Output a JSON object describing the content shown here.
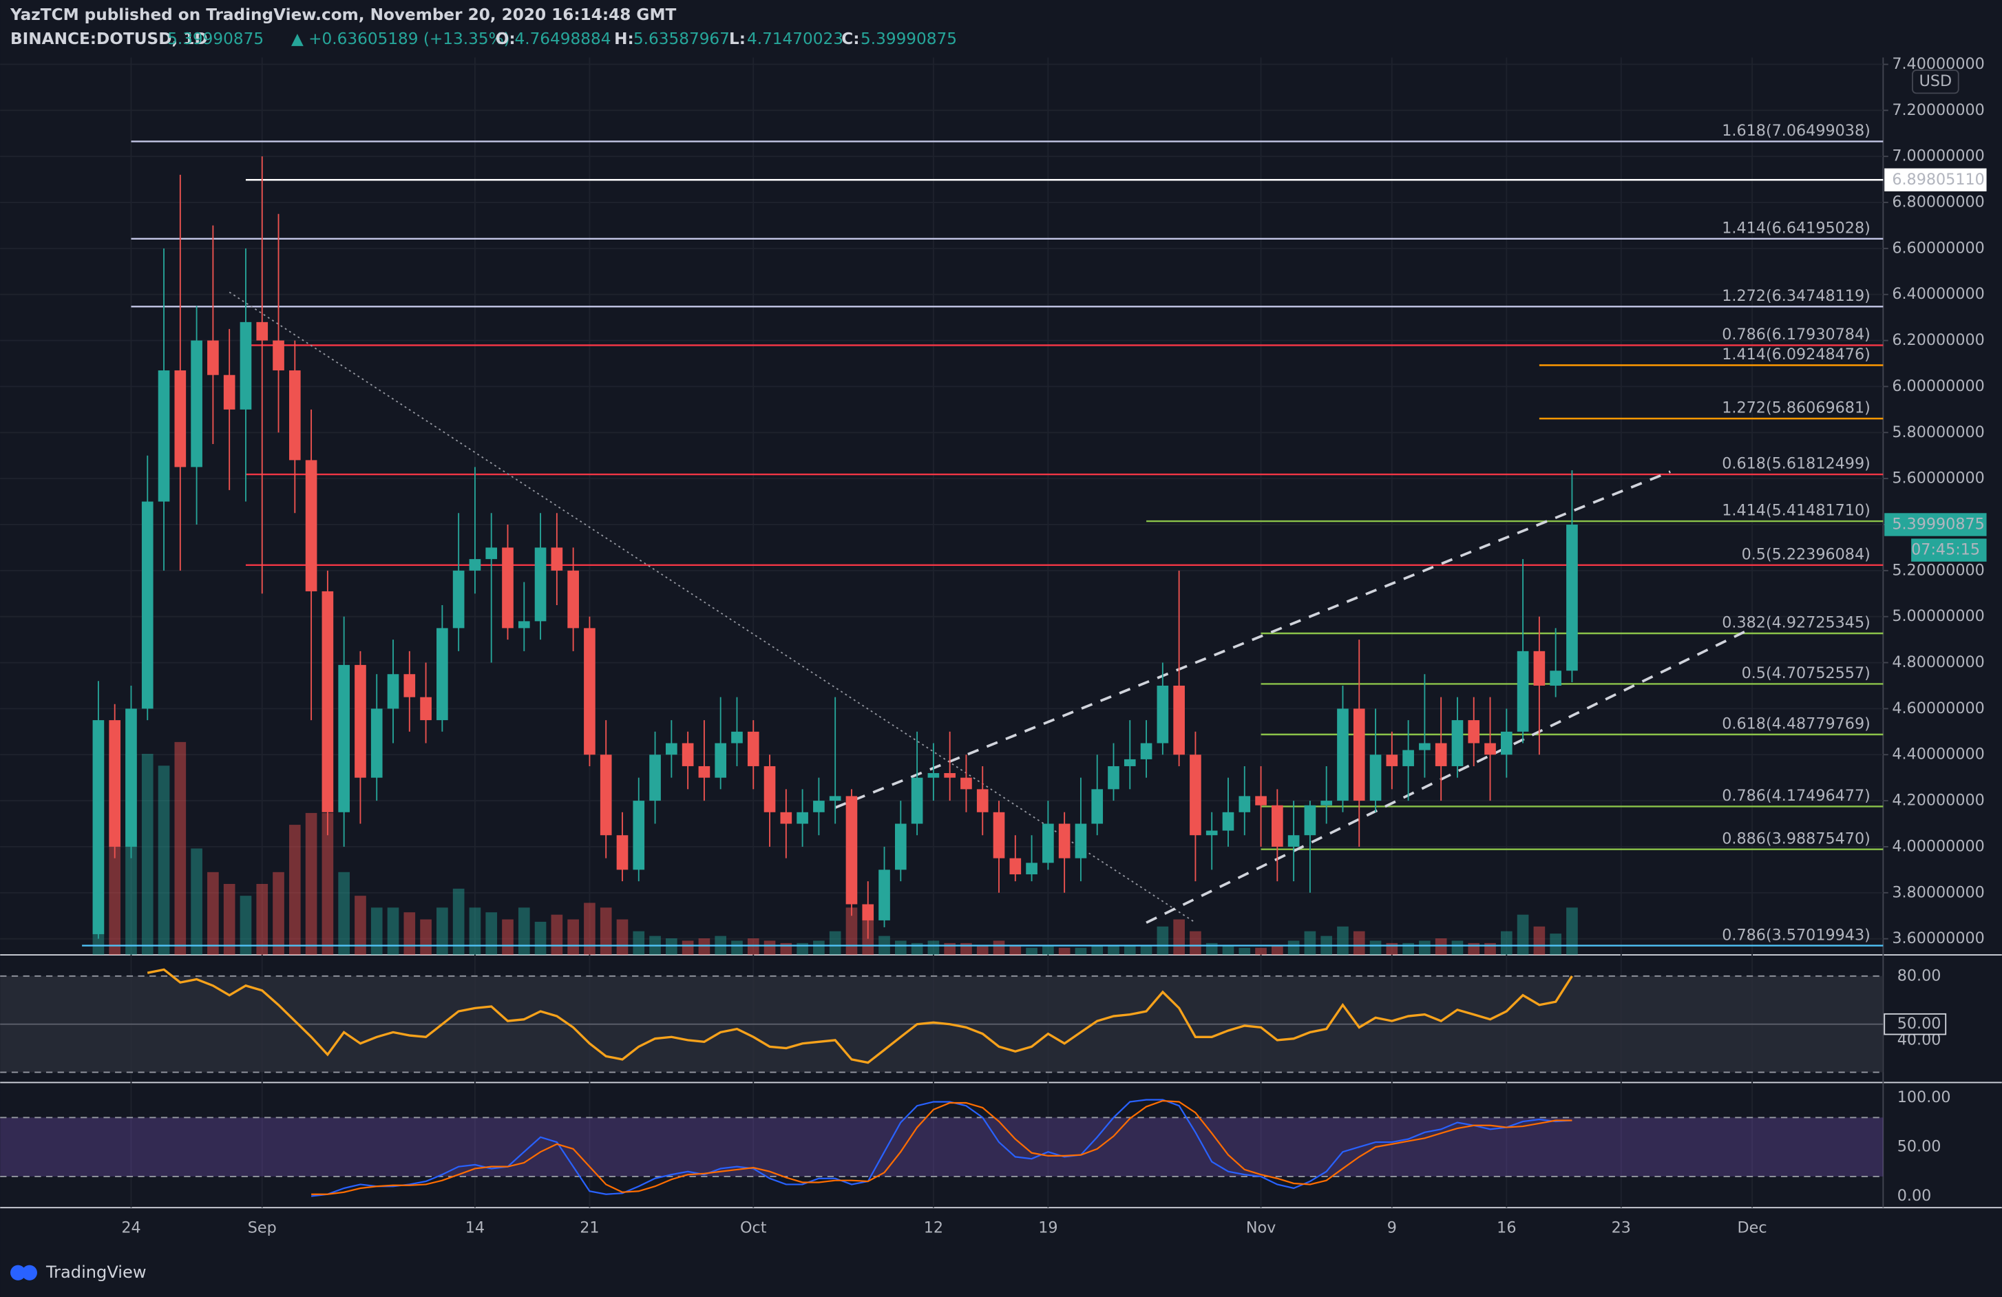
{
  "header": {
    "publisher": "YazTCM published on TradingView.com, November 20, 2020 16:14:48 GMT",
    "symbol": "BINANCE:DOTUSD, 1D",
    "change": "▲ +0.63605189 (+13.35%)",
    "ohlc_labels": [
      "O:",
      "H:",
      "L:",
      "C:"
    ],
    "currency": "USD",
    "countdown": "07:45:15"
  },
  "chart_data": {
    "type": "candlestick",
    "x": [
      "2020-08-22",
      "2020-08-23",
      "2020-08-24",
      "2020-08-25",
      "2020-08-26",
      "2020-08-27",
      "2020-08-28",
      "2020-08-29",
      "2020-08-30",
      "2020-08-31",
      "2020-09-01",
      "2020-09-02",
      "2020-09-03",
      "2020-09-04",
      "2020-09-05",
      "2020-09-06",
      "2020-09-07",
      "2020-09-08",
      "2020-09-09",
      "2020-09-10",
      "2020-09-11",
      "2020-09-12",
      "2020-09-13",
      "2020-09-14",
      "2020-09-15",
      "2020-09-16",
      "2020-09-17",
      "2020-09-18",
      "2020-09-19",
      "2020-09-20",
      "2020-09-21",
      "2020-09-22",
      "2020-09-23",
      "2020-09-24",
      "2020-09-25",
      "2020-09-26",
      "2020-09-27",
      "2020-09-28",
      "2020-09-29",
      "2020-09-30",
      "2020-10-01",
      "2020-10-02",
      "2020-10-03",
      "2020-10-04",
      "2020-10-05",
      "2020-10-06",
      "2020-10-07",
      "2020-10-08",
      "2020-10-09",
      "2020-10-10",
      "2020-10-11",
      "2020-10-12",
      "2020-10-13",
      "2020-10-14",
      "2020-10-15",
      "2020-10-16",
      "2020-10-17",
      "2020-10-18",
      "2020-10-19",
      "2020-10-20",
      "2020-10-21",
      "2020-10-22",
      "2020-10-23",
      "2020-10-24",
      "2020-10-25",
      "2020-10-26",
      "2020-10-27",
      "2020-10-28",
      "2020-10-29",
      "2020-10-30",
      "2020-10-31",
      "2020-11-01",
      "2020-11-02",
      "2020-11-03",
      "2020-11-04",
      "2020-11-05",
      "2020-11-06",
      "2020-11-07",
      "2020-11-08",
      "2020-11-09",
      "2020-11-10",
      "2020-11-11",
      "2020-11-12",
      "2020-11-13",
      "2020-11-14",
      "2020-11-15",
      "2020-11-16",
      "2020-11-17",
      "2020-11-18",
      "2020-11-19",
      "2020-11-20"
    ],
    "open": [
      3.62,
      4.55,
      4.0,
      4.6,
      5.5,
      6.07,
      5.65,
      6.2,
      6.05,
      5.9,
      6.28,
      6.2,
      6.07,
      5.68,
      5.11,
      4.15,
      4.79,
      4.3,
      4.6,
      4.75,
      4.65,
      4.55,
      4.95,
      5.2,
      5.25,
      5.3,
      4.95,
      4.98,
      5.3,
      5.2,
      4.95,
      4.4,
      4.05,
      3.9,
      4.2,
      4.4,
      4.45,
      4.35,
      4.3,
      4.45,
      4.5,
      4.35,
      4.15,
      4.1,
      4.15,
      4.2,
      4.22,
      3.75,
      3.68,
      3.9,
      4.1,
      4.3,
      4.32,
      4.3,
      4.25,
      4.15,
      3.95,
      3.88,
      3.93,
      4.1,
      3.95,
      4.1,
      4.25,
      4.35,
      4.38,
      4.45,
      4.7,
      4.4,
      4.05,
      4.07,
      4.15,
      4.22,
      4.18,
      4.0,
      4.05,
      4.18,
      4.2,
      4.6,
      4.2,
      4.4,
      4.35,
      4.42,
      4.45,
      4.35,
      4.55,
      4.45,
      4.4,
      4.5,
      4.85,
      4.7,
      4.76498884
    ],
    "high": [
      4.72,
      4.62,
      4.7,
      5.7,
      6.6,
      6.92,
      6.35,
      6.7,
      6.25,
      6.6,
      7.0,
      6.75,
      6.2,
      5.9,
      5.2,
      5.0,
      4.85,
      4.75,
      4.9,
      4.85,
      4.8,
      5.05,
      5.45,
      5.65,
      5.45,
      5.4,
      5.15,
      5.45,
      5.45,
      5.3,
      5.0,
      4.55,
      4.15,
      4.3,
      4.5,
      4.55,
      4.5,
      4.55,
      4.65,
      4.65,
      4.55,
      4.4,
      4.25,
      4.25,
      4.3,
      4.65,
      4.25,
      3.85,
      4.0,
      4.2,
      4.5,
      4.45,
      4.5,
      4.4,
      4.35,
      4.2,
      4.05,
      4.05,
      4.2,
      4.15,
      4.3,
      4.4,
      4.45,
      4.55,
      4.55,
      4.8,
      5.2,
      4.5,
      4.15,
      4.3,
      4.35,
      4.35,
      4.25,
      4.2,
      4.2,
      4.35,
      4.7,
      4.9,
      4.6,
      4.5,
      4.55,
      4.75,
      4.65,
      4.65,
      4.65,
      4.65,
      4.6,
      5.25,
      5.0,
      4.95,
      5.63587967
    ],
    "low": [
      3.6,
      3.95,
      3.95,
      4.55,
      5.2,
      5.2,
      5.4,
      5.75,
      5.55,
      5.5,
      5.1,
      5.8,
      5.45,
      4.55,
      4.05,
      4.0,
      4.1,
      4.2,
      4.45,
      4.5,
      4.45,
      4.5,
      4.85,
      5.1,
      4.8,
      4.9,
      4.85,
      4.9,
      5.05,
      4.85,
      4.35,
      3.95,
      3.85,
      3.85,
      4.1,
      4.3,
      4.25,
      4.2,
      4.25,
      4.35,
      4.25,
      4.0,
      3.95,
      4.0,
      4.05,
      4.1,
      3.7,
      3.6,
      3.65,
      3.85,
      4.05,
      4.2,
      4.2,
      4.15,
      4.05,
      3.8,
      3.85,
      3.85,
      3.9,
      3.8,
      3.85,
      4.05,
      4.2,
      4.25,
      4.3,
      4.4,
      4.35,
      3.85,
      3.9,
      4.0,
      4.05,
      4.0,
      3.85,
      3.85,
      3.8,
      4.1,
      4.15,
      4.0,
      4.15,
      4.25,
      4.2,
      4.3,
      4.2,
      4.3,
      4.35,
      4.2,
      4.3,
      4.45,
      4.4,
      4.65,
      4.71470023
    ],
    "close": [
      4.55,
      4.0,
      4.6,
      5.5,
      6.07,
      5.65,
      6.2,
      6.05,
      5.9,
      6.28,
      6.2,
      6.07,
      5.68,
      5.11,
      4.15,
      4.79,
      4.3,
      4.6,
      4.75,
      4.65,
      4.55,
      4.95,
      5.2,
      5.25,
      5.3,
      4.95,
      4.98,
      5.3,
      5.2,
      4.95,
      4.4,
      4.05,
      3.9,
      4.2,
      4.4,
      4.45,
      4.35,
      4.3,
      4.45,
      4.5,
      4.35,
      4.15,
      4.1,
      4.15,
      4.2,
      4.22,
      3.75,
      3.68,
      3.9,
      4.1,
      4.3,
      4.32,
      4.3,
      4.25,
      4.15,
      3.95,
      3.88,
      3.93,
      4.1,
      3.95,
      4.1,
      4.25,
      4.35,
      4.38,
      4.45,
      4.7,
      4.4,
      4.05,
      4.07,
      4.15,
      4.22,
      4.18,
      4.0,
      4.05,
      4.18,
      4.2,
      4.6,
      4.2,
      4.4,
      4.35,
      4.42,
      4.45,
      4.35,
      4.55,
      4.45,
      4.4,
      4.5,
      4.85,
      4.7,
      4.76498884,
      5.39990875
    ],
    "volume": [
      95,
      85,
      85,
      85,
      80,
      90,
      45,
      35,
      30,
      25,
      30,
      35,
      55,
      60,
      60,
      35,
      25,
      20,
      20,
      18,
      15,
      20,
      28,
      20,
      18,
      15,
      20,
      14,
      17,
      15,
      22,
      20,
      15,
      10,
      8,
      7,
      6,
      7,
      8,
      6,
      7,
      6,
      5,
      5,
      6,
      10,
      20,
      15,
      8,
      6,
      5,
      6,
      5,
      5,
      4,
      6,
      4,
      3,
      4,
      3,
      3,
      4,
      4,
      4,
      4,
      12,
      15,
      10,
      5,
      4,
      3,
      3,
      4,
      6,
      10,
      8,
      12,
      10,
      6,
      5,
      5,
      6,
      7,
      6,
      5,
      5,
      10,
      17,
      12,
      9,
      20
    ],
    "up_color": "#26a69a",
    "down_color": "#ef5350",
    "xlim": [
      "2020-08-16",
      "2020-12-09"
    ],
    "xticks": [
      {
        "value": "2020-08-24",
        "label": "24"
      },
      {
        "value": "2020-09-01",
        "label": "Sep"
      },
      {
        "value": "2020-09-14",
        "label": "14"
      },
      {
        "value": "2020-09-21",
        "label": "21"
      },
      {
        "value": "2020-10-01",
        "label": "Oct"
      },
      {
        "value": "2020-10-12",
        "label": "12"
      },
      {
        "value": "2020-10-19",
        "label": "19"
      },
      {
        "value": "2020-11-01",
        "label": "Nov"
      },
      {
        "value": "2020-11-09",
        "label": "9"
      },
      {
        "value": "2020-11-16",
        "label": "16"
      },
      {
        "value": "2020-11-23",
        "label": "23"
      },
      {
        "value": "2020-12-01",
        "label": "Dec"
      }
    ],
    "ylim": [
      3.53,
      7.43
    ],
    "yticks": [
      {
        "value": 3.6,
        "label": "3.60000000"
      },
      {
        "value": 3.8,
        "label": "3.80000000"
      },
      {
        "value": 4.0,
        "label": "4.00000000"
      },
      {
        "value": 4.2,
        "label": "4.20000000"
      },
      {
        "value": 4.4,
        "label": "4.40000000"
      },
      {
        "value": 4.6,
        "label": "4.60000000"
      },
      {
        "value": 4.8,
        "label": "4.80000000"
      },
      {
        "value": 5.0,
        "label": "5.00000000"
      },
      {
        "value": 5.2,
        "label": "5.20000000"
      },
      {
        "value": 5.4,
        "label": "5.40000000"
      },
      {
        "value": 5.6,
        "label": "5.60000000"
      },
      {
        "value": 5.8,
        "label": "5.80000000"
      },
      {
        "value": 6.0,
        "label": "6.00000000"
      },
      {
        "value": 6.2,
        "label": "6.20000000"
      },
      {
        "value": 6.4,
        "label": "6.40000000"
      },
      {
        "value": 6.6,
        "label": "6.60000000"
      },
      {
        "value": 6.8,
        "label": "6.80000000"
      },
      {
        "value": 7.0,
        "label": "7.00000000"
      },
      {
        "value": 7.2,
        "label": "7.20000000"
      },
      {
        "value": 7.4,
        "label": "7.40000000"
      }
    ],
    "grid": true,
    "levels": [
      {
        "value": 7.06499038,
        "label": "1.618(7.06499038)",
        "color": "#c5c8e8",
        "start": "2020-08-24"
      },
      {
        "value": 6.64195028,
        "label": "1.414(6.64195028)",
        "color": "#c5c8e8",
        "start": "2020-08-24"
      },
      {
        "value": 6.34748119,
        "label": "1.272(6.34748119)",
        "color": "#c5c8e8",
        "start": "2020-08-24"
      },
      {
        "value": 6.17930784,
        "label": "0.786(6.17930784)",
        "color": "#f23645",
        "start": "2020-08-31"
      },
      {
        "value": 6.09248476,
        "label": "1.414(6.09248476)",
        "color": "#ff9800",
        "start": "2020-11-18"
      },
      {
        "value": 5.86069681,
        "label": "1.272(5.86069681)",
        "color": "#ff9800",
        "start": "2020-11-18"
      },
      {
        "value": 5.61812499,
        "label": "0.618(5.61812499)",
        "color": "#f23645",
        "start": "2020-08-31"
      },
      {
        "value": 5.4148171,
        "label": "1.414(5.41481710)",
        "color": "#8bc34a",
        "start": "2020-10-25"
      },
      {
        "value": 5.22396084,
        "label": "0.5(5.22396084)",
        "color": "#f23645",
        "start": "2020-08-31"
      },
      {
        "value": 4.92725345,
        "label": "0.382(4.92725345)",
        "color": "#8bc34a",
        "start": "2020-11-01"
      },
      {
        "value": 4.70752557,
        "label": "0.5(4.70752557)",
        "color": "#8bc34a",
        "start": "2020-11-01"
      },
      {
        "value": 4.48779769,
        "label": "0.618(4.48779769)",
        "color": "#8bc34a",
        "start": "2020-11-01"
      },
      {
        "value": 4.17496477,
        "label": "0.786(4.17496477)",
        "color": "#8bc34a",
        "start": "2020-11-01"
      },
      {
        "value": 3.9887547,
        "label": "0.886(3.98875470)",
        "color": "#8bc34a",
        "start": "2020-11-01"
      },
      {
        "value": 3.57019943,
        "label": "0.786(3.57019943)",
        "color": "#4fc3f7",
        "start": "2020-08-21"
      }
    ],
    "price_lines": [
      {
        "value": 6.8980511,
        "label": "6.89805110",
        "color": "#ffffff",
        "start": "2020-08-31"
      }
    ],
    "trendlines": [
      {
        "points": [
          {
            "x": "2020-08-30",
            "y": 6.41
          },
          {
            "x": "2020-10-28",
            "y": 3.67
          }
        ],
        "style": "dotted",
        "color": "#9598a1"
      },
      {
        "points": [
          {
            "x": "2020-10-06",
            "y": 4.17
          },
          {
            "x": "2020-11-26",
            "y": 5.63
          }
        ],
        "style": "dashed",
        "color": "#d1d4dc"
      },
      {
        "points": [
          {
            "x": "2020-10-25",
            "y": 3.67
          },
          {
            "x": "2020-12-01",
            "y": 4.95
          }
        ],
        "style": "dashed",
        "color": "#d1d4dc"
      }
    ],
    "rsi": {
      "color": "#f7a21b",
      "ylim": [
        16,
        90
      ],
      "yticks": [
        {
          "value": 80,
          "label": "80.00"
        },
        {
          "value": 40,
          "label": "40.00"
        }
      ],
      "bands": [
        20,
        80
      ],
      "midline": {
        "value": 50,
        "label": "50.00"
      },
      "values": [
        null,
        null,
        null,
        82,
        84,
        76,
        78,
        74,
        68,
        74,
        71,
        62,
        52,
        42,
        31,
        45,
        38,
        42,
        45,
        43,
        42,
        50,
        58,
        60,
        61,
        52,
        53,
        58,
        55,
        48,
        38,
        30,
        28,
        36,
        41,
        42,
        40,
        39,
        45,
        47,
        42,
        36,
        35,
        38,
        39,
        40,
        28,
        26,
        34,
        42,
        50,
        51,
        50,
        48,
        44,
        36,
        33,
        36,
        44,
        38,
        45,
        52,
        55,
        56,
        58,
        70,
        60,
        42,
        42,
        46,
        49,
        48,
        40,
        41,
        45,
        47,
        62,
        48,
        54,
        52,
        55,
        56,
        52,
        59,
        56,
        53,
        58,
        68,
        62,
        64,
        80
      ]
    },
    "stoch_rsi": {
      "ylim": [
        -10.4,
        110.4
      ],
      "yticks": [
        {
          "value": 0,
          "label": "0.00"
        },
        {
          "value": 50,
          "label": "50.00"
        },
        {
          "value": 100,
          "label": "100.00"
        }
      ],
      "bands": [
        20,
        80
      ],
      "series": [
        {
          "color": "#2962ff",
          "values": [
            null,
            null,
            null,
            null,
            null,
            null,
            null,
            null,
            null,
            null,
            null,
            null,
            null,
            0,
            2,
            8,
            12,
            10,
            10,
            12,
            15,
            22,
            30,
            32,
            28,
            30,
            45,
            60,
            55,
            30,
            5,
            2,
            3,
            10,
            18,
            22,
            25,
            22,
            28,
            30,
            28,
            18,
            12,
            12,
            18,
            18,
            12,
            15,
            45,
            75,
            92,
            96,
            96,
            92,
            80,
            55,
            40,
            38,
            45,
            40,
            42,
            60,
            80,
            96,
            98,
            98,
            92,
            65,
            35,
            25,
            22,
            20,
            12,
            8,
            15,
            25,
            45,
            50,
            55,
            55,
            58,
            65,
            68,
            75,
            72,
            68,
            70,
            76,
            78,
            76,
            77
          ]
        },
        {
          "color": "#ff6d00",
          "values": [
            null,
            null,
            null,
            null,
            null,
            null,
            null,
            null,
            null,
            null,
            null,
            null,
            null,
            2,
            2,
            4,
            8,
            10,
            11,
            11,
            12,
            16,
            22,
            28,
            30,
            30,
            34,
            45,
            53,
            48,
            30,
            12,
            4,
            5,
            10,
            17,
            22,
            23,
            25,
            27,
            29,
            25,
            19,
            14,
            14,
            16,
            16,
            15,
            24,
            45,
            70,
            88,
            95,
            95,
            90,
            76,
            58,
            44,
            41,
            41,
            42,
            48,
            61,
            79,
            91,
            97,
            96,
            85,
            64,
            42,
            27,
            22,
            18,
            13,
            12,
            16,
            28,
            40,
            50,
            53,
            56,
            59,
            64,
            69,
            72,
            72,
            70,
            71,
            74,
            77,
            77
          ]
        }
      ]
    }
  },
  "footer": {
    "brand": "TradingView"
  }
}
